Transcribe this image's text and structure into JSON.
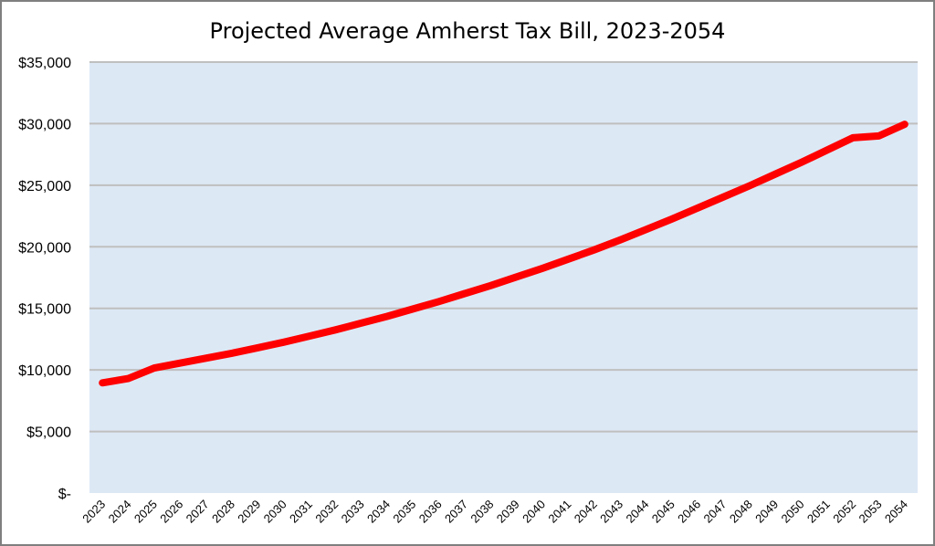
{
  "chart_data": {
    "type": "line",
    "title": "Projected Average Amherst Tax Bill, 2023-2054",
    "xlabel": "",
    "ylabel": "",
    "x": [
      "2023",
      "2024",
      "2025",
      "2026",
      "2027",
      "2028",
      "2029",
      "2030",
      "2031",
      "2032",
      "2033",
      "2034",
      "2035",
      "2036",
      "2037",
      "2038",
      "2039",
      "2040",
      "2041",
      "2042",
      "2043",
      "2044",
      "2045",
      "2046",
      "2047",
      "2048",
      "2049",
      "2050",
      "2051",
      "2052",
      "2053",
      "2054"
    ],
    "series": [
      {
        "values": [
          8950,
          9300,
          10150,
          10550,
          10950,
          11350,
          11800,
          12250,
          12750,
          13250,
          13800,
          14350,
          14950,
          15550,
          16200,
          16850,
          17550,
          18250,
          19000,
          19750,
          20550,
          21400,
          22250,
          23150,
          24050,
          24950,
          25900,
          26850,
          27850,
          28850,
          29000,
          29950
        ]
      }
    ],
    "yticks": [
      "$-",
      "$5,000",
      "$10,000",
      "$15,000",
      "$20,000",
      "$25,000",
      "$30,000",
      "$35,000"
    ],
    "ylim": [
      0,
      35000
    ],
    "grid": true,
    "legend": "none",
    "colors": {
      "line": "#ff0000",
      "plot_background": "#dde8f5",
      "gridline": "#bfbfbf",
      "frame": "#7f7f7f"
    }
  }
}
